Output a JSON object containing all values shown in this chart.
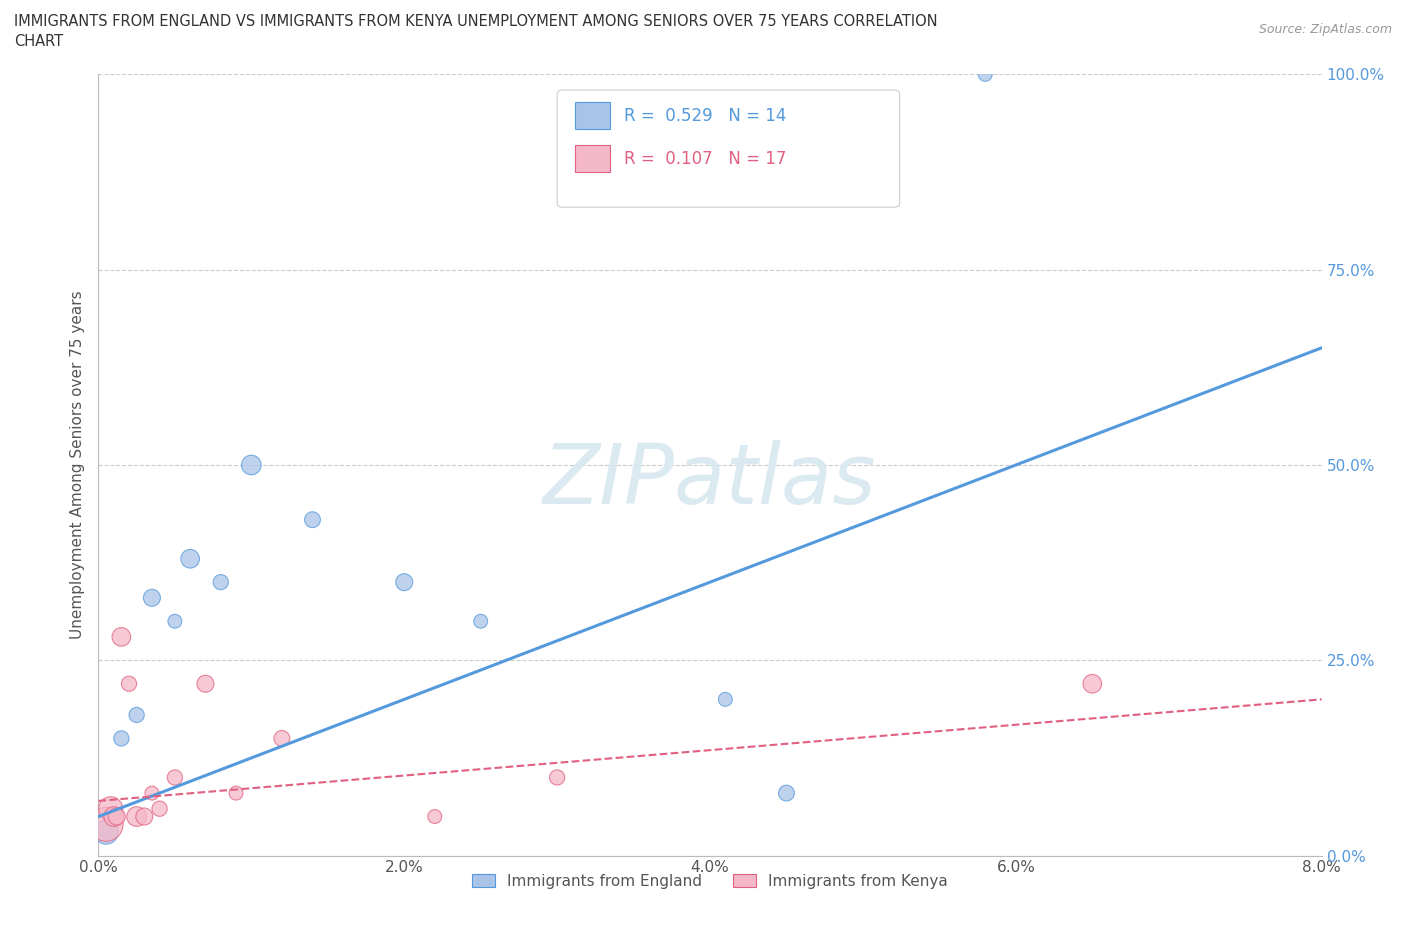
{
  "title_line1": "IMMIGRANTS FROM ENGLAND VS IMMIGRANTS FROM KENYA UNEMPLOYMENT AMONG SENIORS OVER 75 YEARS CORRELATION",
  "title_line2": "CHART",
  "source_text": "Source: ZipAtlas.com",
  "ylabel": "Unemployment Among Seniors over 75 years",
  "xlabel_england": "Immigrants from England",
  "xlabel_kenya": "Immigrants from Kenya",
  "xlim": [
    0.0,
    8.0
  ],
  "ylim": [
    0.0,
    100.0
  ],
  "xticks": [
    0,
    2,
    4,
    6,
    8
  ],
  "yticks": [
    0,
    25,
    50,
    75,
    100
  ],
  "xtick_labels": [
    "0.0%",
    "2.0%",
    "4.0%",
    "6.0%",
    "8.0%"
  ],
  "ytick_labels": [
    "0.0%",
    "25.0%",
    "50.0%",
    "75.0%",
    "100.0%"
  ],
  "england_R": 0.529,
  "england_N": 14,
  "kenya_R": 0.107,
  "kenya_N": 17,
  "england_color": "#aac4e8",
  "england_line_color": "#5599dd",
  "kenya_color": "#f5b8c8",
  "kenya_line_color": "#e06080",
  "watermark": "ZIPatlas",
  "england_x": [
    0.05,
    0.15,
    0.25,
    0.35,
    0.5,
    0.6,
    0.8,
    1.0,
    1.4,
    2.0,
    2.5,
    4.5,
    5.8,
    4.1
  ],
  "england_y": [
    3,
    15,
    18,
    33,
    30,
    38,
    35,
    50,
    43,
    35,
    30,
    8,
    100,
    20
  ],
  "england_size": [
    300,
    120,
    120,
    150,
    100,
    180,
    120,
    200,
    130,
    150,
    100,
    130,
    100,
    100
  ],
  "kenya_x": [
    0.05,
    0.08,
    0.1,
    0.12,
    0.15,
    0.2,
    0.25,
    0.3,
    0.35,
    0.4,
    0.5,
    0.7,
    0.9,
    1.2,
    2.2,
    3.0,
    6.5
  ],
  "kenya_y": [
    4,
    6,
    5,
    5,
    28,
    22,
    5,
    5,
    8,
    6,
    10,
    22,
    8,
    15,
    5,
    10,
    22
  ],
  "kenya_size": [
    600,
    300,
    200,
    150,
    180,
    120,
    200,
    150,
    100,
    120,
    120,
    150,
    100,
    130,
    100,
    120,
    180
  ],
  "eng_line_x": [
    0,
    8
  ],
  "eng_line_y": [
    5,
    65
  ],
  "ken_line_x": [
    0,
    8
  ],
  "ken_line_y": [
    7,
    20
  ]
}
